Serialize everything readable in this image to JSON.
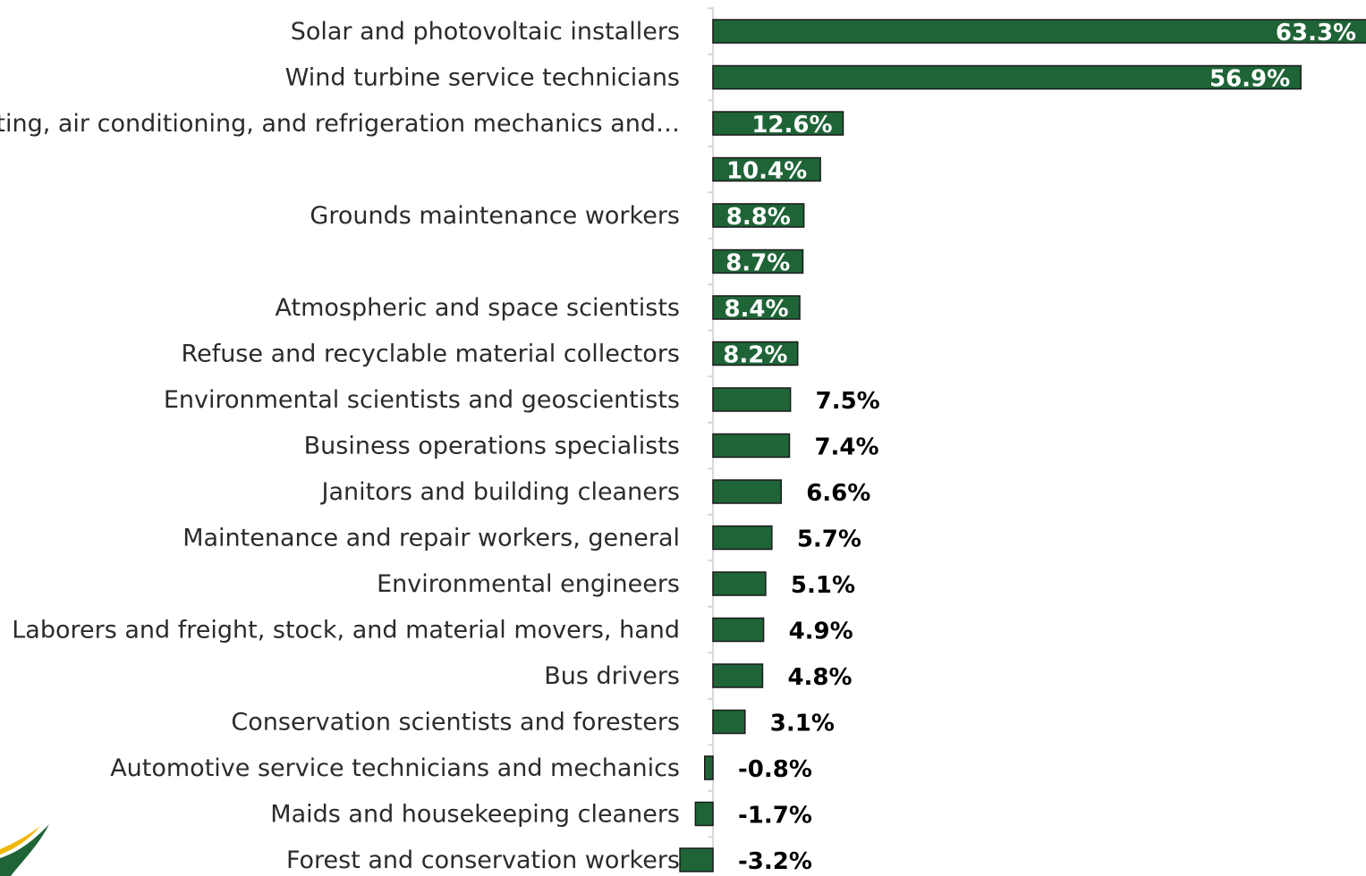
{
  "chart_data": {
    "type": "bar",
    "orientation": "horizontal",
    "title": "",
    "xlabel": "",
    "ylabel": "",
    "value_format": "percent",
    "colors": {
      "bar": "#1f6437",
      "bar_border": "#1a1a1a",
      "axis": "#d9d9d9",
      "label_inside": "#ffffff",
      "label_outside": "#000000",
      "category_text": "#2b2b2b"
    },
    "categories": [
      "Solar and photovoltaic installers",
      "Wind turbine service technicians",
      "Heating, air conditioning, and refrigeration mechanics and…",
      "",
      "Grounds maintenance workers",
      "",
      "Atmospheric and space scientists",
      "Refuse and recyclable material collectors",
      "Environmental scientists and geoscientists",
      "Business operations specialists",
      "Janitors and building cleaners",
      "Maintenance and repair workers, general",
      "Environmental engineers",
      "Laborers and freight, stock, and material movers, hand",
      "Bus drivers",
      "Conservation scientists and foresters",
      "Automotive service technicians and mechanics",
      "Maids and housekeeping cleaners",
      "Forest and conservation workers"
    ],
    "values": [
      63.3,
      56.9,
      12.6,
      10.4,
      8.8,
      8.7,
      8.4,
      8.2,
      7.5,
      7.4,
      6.6,
      5.7,
      5.1,
      4.9,
      4.8,
      3.1,
      -0.8,
      -1.7,
      -3.2
    ],
    "labels": [
      "63.3%",
      "56.9%",
      "12.6%",
      "10.4%",
      "8.8%",
      "8.7%",
      "8.4%",
      "8.2%",
      "7.5%",
      "7.4%",
      "6.6%",
      "5.7%",
      "5.1%",
      "4.9%",
      "4.8%",
      "3.1%",
      "-0.8%",
      "-1.7%",
      "-3.2%"
    ],
    "label_inside_bar": [
      true,
      true,
      true,
      true,
      true,
      true,
      true,
      true,
      false,
      false,
      false,
      false,
      false,
      false,
      false,
      false,
      false,
      false,
      false
    ]
  },
  "logo": {
    "icon": "swoosh-logo-icon",
    "colors": [
      "#1f6437",
      "#f2b705"
    ]
  }
}
